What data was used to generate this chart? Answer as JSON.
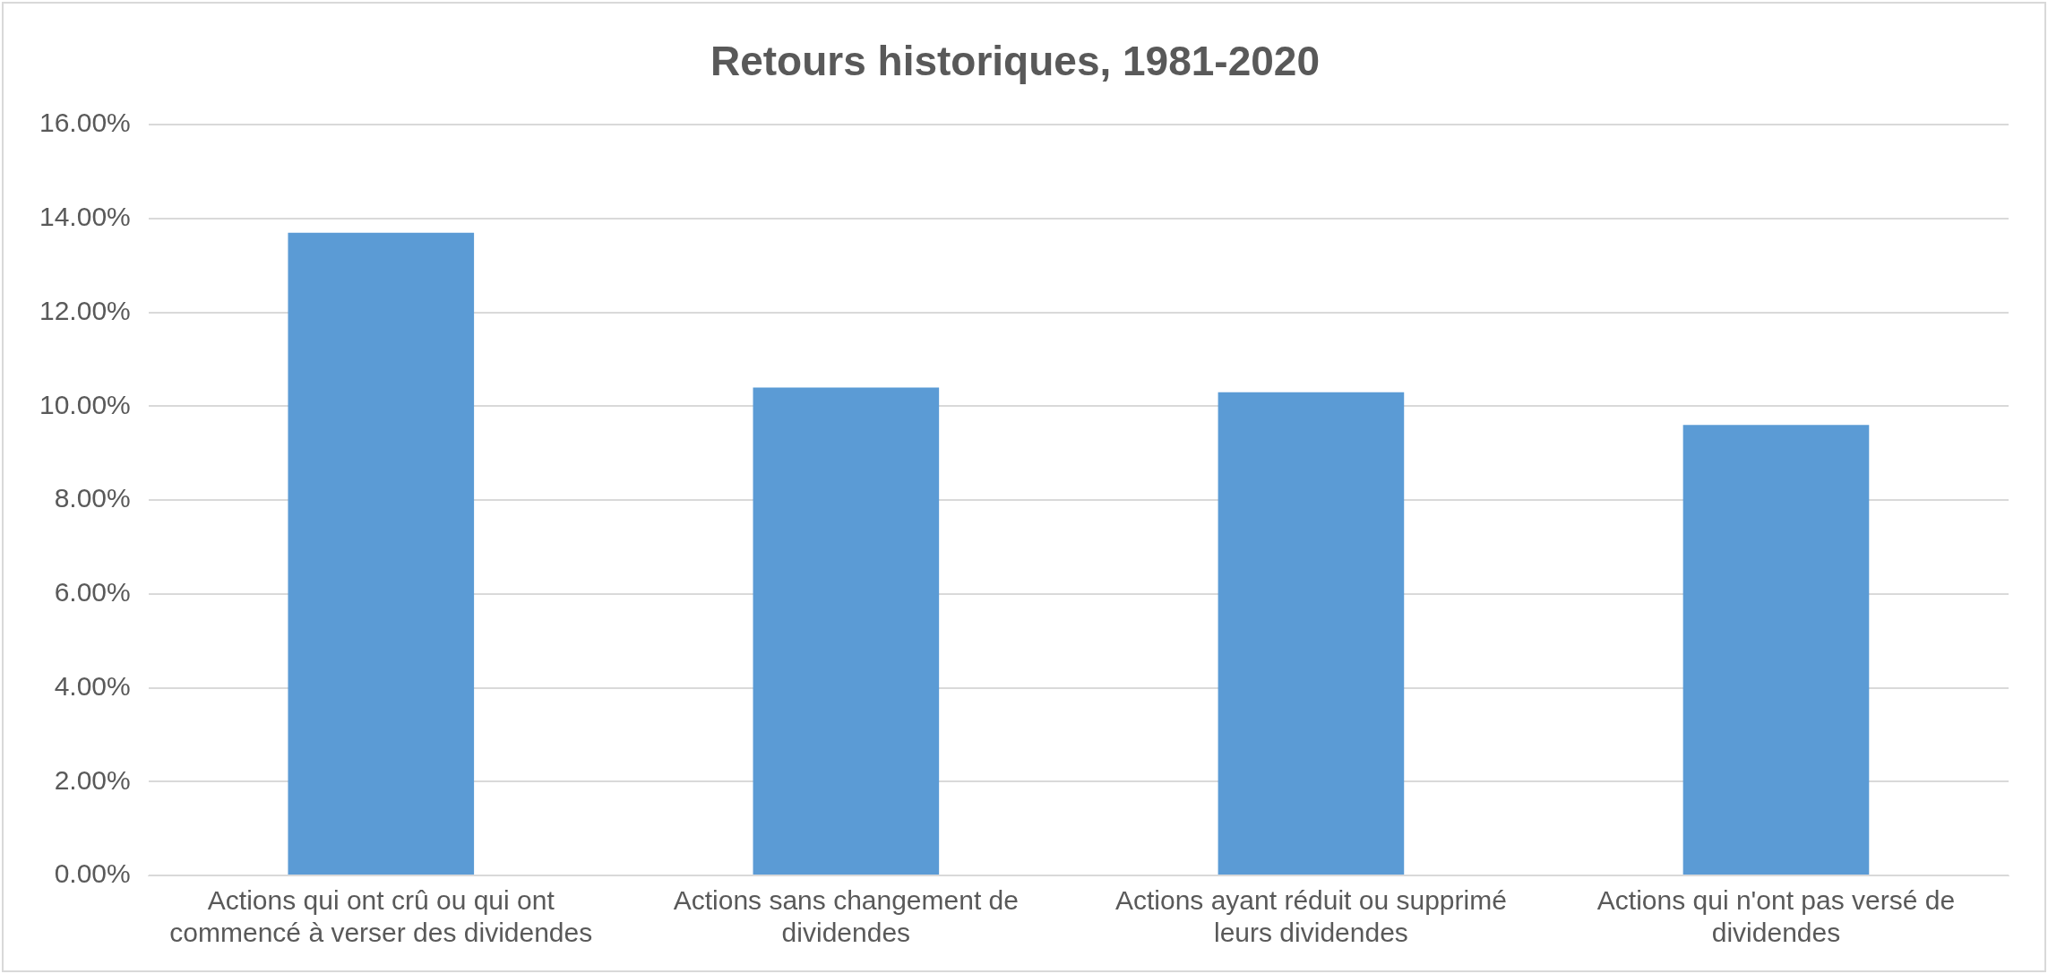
{
  "chart_data": {
    "type": "bar",
    "title": "Retours historiques, 1981-2020",
    "categories": [
      "Actions qui ont crû ou qui ont commencé à verser des dividendes",
      "Actions sans changement de dividendes",
      "Actions ayant réduit ou supprimé leurs dividendes",
      "Actions qui n'ont pas versé de dividendes"
    ],
    "values": [
      13.7,
      10.4,
      10.3,
      9.6
    ],
    "color": "#5b9bd5",
    "ylim": [
      0,
      16
    ],
    "yticks": [
      {
        "value": 0,
        "label": "0.00%"
      },
      {
        "value": 2,
        "label": "2.00%"
      },
      {
        "value": 4,
        "label": "4.00%"
      },
      {
        "value": 6,
        "label": "6.00%"
      },
      {
        "value": 8,
        "label": "8.00%"
      },
      {
        "value": 10,
        "label": "10.00%"
      },
      {
        "value": 12,
        "label": "12.00%"
      },
      {
        "value": 14,
        "label": "14.00%"
      },
      {
        "value": 16,
        "label": "16.00%"
      }
    ],
    "grid": "y"
  }
}
